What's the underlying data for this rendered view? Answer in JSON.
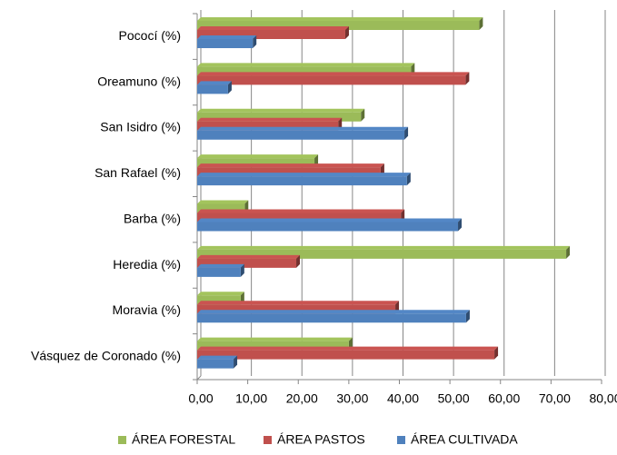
{
  "chart_data": {
    "type": "bar",
    "orientation": "horizontal",
    "categories": [
      "Pococí (%)",
      "Oreamuno (%)",
      "San Isidro (%)",
      "San Rafael (%)",
      "Barba (%)",
      "Heredia (%)",
      "Moravia (%)",
      "Vásquez de Coronado (%)"
    ],
    "series": [
      {
        "name": "ÁREA FORESTAL",
        "color": "#9bbb59",
        "values": [
          55.8,
          42.3,
          32.4,
          23.2,
          9.4,
          73.0,
          8.6,
          30.0
        ]
      },
      {
        "name": "ÁREA PASTOS",
        "color": "#c0504d",
        "values": [
          29.3,
          53.1,
          27.9,
          36.3,
          40.3,
          19.6,
          39.2,
          58.8
        ]
      },
      {
        "name": "ÁREA CULTIVADA",
        "color": "#4f81bd",
        "values": [
          11.0,
          6.1,
          41.0,
          41.5,
          51.6,
          8.6,
          53.2,
          7.2
        ]
      }
    ],
    "xlim": [
      0,
      80
    ],
    "xticks": [
      {
        "value": 0,
        "label": "0,00"
      },
      {
        "value": 10,
        "label": "10,00"
      },
      {
        "value": 20,
        "label": "20,00"
      },
      {
        "value": 30,
        "label": "30,00"
      },
      {
        "value": 40,
        "label": "40,00"
      },
      {
        "value": 50,
        "label": "50,00"
      },
      {
        "value": 60,
        "label": "60,00"
      },
      {
        "value": 70,
        "label": "70,00"
      },
      {
        "value": 80,
        "label": "80,00"
      }
    ],
    "grid": true,
    "legend": "bottom"
  }
}
